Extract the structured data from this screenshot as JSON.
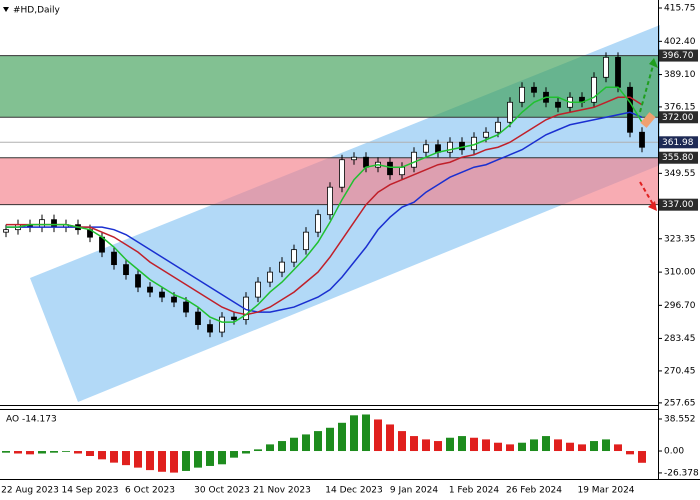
{
  "chart_data": [
    {
      "type": "candlestick",
      "title": "#HD,Daily",
      "categories": [
        null,
        null,
        "22 Aug 2023",
        null,
        null,
        null,
        null,
        "14 Sep 2023",
        null,
        null,
        null,
        null,
        "6 Oct 2023",
        null,
        null,
        null,
        null,
        null,
        "30 Oct 2023",
        null,
        null,
        null,
        null,
        "21 Nov 2023",
        null,
        null,
        null,
        null,
        null,
        "14 Dec 2023",
        null,
        null,
        null,
        null,
        "9 Jan 2024",
        null,
        null,
        null,
        null,
        "1 Feb 2024",
        null,
        null,
        null,
        null,
        "26 Feb 2024",
        null,
        null,
        null,
        null,
        null,
        "19 Mar 2024",
        null,
        null,
        null
      ],
      "open": [
        326,
        327,
        329,
        328,
        331,
        328,
        329,
        327,
        324,
        318,
        313,
        309,
        304,
        302,
        300,
        298,
        294,
        289,
        286,
        292,
        291,
        300,
        306,
        310,
        314,
        319,
        326,
        333,
        344,
        355,
        356,
        352,
        354,
        349,
        352,
        358,
        361,
        358,
        362,
        359,
        364,
        366,
        370,
        378,
        384,
        382,
        378,
        376,
        380,
        378,
        388,
        396,
        384,
        366
      ],
      "high": [
        329,
        331,
        331,
        333,
        333,
        331,
        331,
        329,
        326,
        320,
        315,
        311,
        306,
        304,
        302,
        300,
        296,
        291,
        294,
        294,
        302,
        308,
        312,
        316,
        321,
        328,
        335,
        346,
        357,
        358,
        358,
        356,
        356,
        354,
        360,
        363,
        363,
        364,
        364,
        366,
        368,
        372,
        380,
        386,
        386,
        384,
        380,
        382,
        382,
        390,
        398,
        398,
        386,
        368
      ],
      "low": [
        324,
        325,
        326,
        326,
        326,
        326,
        325,
        322,
        316,
        311,
        307,
        302,
        300,
        298,
        296,
        292,
        287,
        284,
        284,
        289,
        289,
        298,
        304,
        308,
        312,
        317,
        324,
        331,
        342,
        353,
        350,
        350,
        347,
        347,
        350,
        356,
        356,
        356,
        357,
        357,
        362,
        364,
        368,
        376,
        380,
        376,
        374,
        374,
        376,
        376,
        386,
        382,
        364,
        358
      ],
      "close": [
        327,
        329,
        328,
        331,
        328,
        329,
        327,
        324,
        318,
        313,
        309,
        304,
        302,
        300,
        298,
        294,
        289,
        286,
        292,
        291,
        300,
        306,
        310,
        314,
        319,
        326,
        333,
        344,
        355,
        356,
        352,
        354,
        349,
        352,
        358,
        361,
        358,
        362,
        359,
        364,
        366,
        370,
        378,
        384,
        382,
        378,
        376,
        380,
        378,
        388,
        396,
        384,
        366,
        360
      ],
      "up_color": "#ffffff",
      "down_color": "#000000",
      "ylim": [
        256.8,
        418.95
      ],
      "yticks": [
        415.75,
        {
          "value": 402.4,
          "label": "402.40"
        },
        {
          "value": 389.1,
          "label": "389.10"
        },
        376.15,
        349.55,
        323.35,
        {
          "value": 310,
          "label": "310.00"
        },
        {
          "value": 296.7,
          "label": "296.70"
        },
        283.45,
        270.45,
        257.65
      ],
      "series": [
        {
          "color": "#1a2fd0",
          "values": [
            328,
            328,
            328,
            328,
            328,
            328,
            328,
            328,
            328,
            327,
            325,
            322,
            319,
            316,
            313,
            310,
            307,
            304,
            301,
            298,
            295,
            294,
            294,
            295,
            296,
            298,
            300,
            303,
            308,
            314,
            320,
            327,
            332,
            336,
            338,
            342,
            345,
            348,
            350,
            352,
            353,
            355,
            357,
            359,
            362,
            365,
            367,
            369,
            370,
            371,
            372,
            373,
            374,
            372
          ]
        },
        {
          "color": "#c0202a",
          "values": [
            329,
            329,
            329,
            329,
            329,
            329,
            328,
            328,
            326,
            324,
            321,
            318,
            314,
            311,
            308,
            305,
            302,
            299,
            296,
            294,
            293,
            294,
            296,
            299,
            302,
            306,
            310,
            316,
            323,
            330,
            337,
            342,
            345,
            347,
            349,
            351,
            353,
            354,
            356,
            357,
            359,
            360,
            362,
            365,
            368,
            371,
            373,
            374,
            375,
            376,
            378,
            380,
            380,
            377
          ]
        },
        {
          "color": "#20c030",
          "values": [
            328,
            328,
            329,
            329,
            329,
            329,
            328,
            327,
            324,
            320,
            315,
            311,
            307,
            304,
            301,
            299,
            296,
            292,
            290,
            290,
            293,
            297,
            302,
            306,
            311,
            316,
            322,
            330,
            339,
            347,
            352,
            353,
            352,
            352,
            354,
            356,
            358,
            359,
            360,
            361,
            363,
            365,
            369,
            374,
            378,
            380,
            380,
            378,
            378,
            380,
            384,
            384,
            378,
            370
          ]
        }
      ],
      "levels": [
        {
          "value": 396.7,
          "label": "396.70"
        },
        {
          "value": 372,
          "label": "372.00"
        },
        361.98,
        {
          "value": 355.8,
          "label": "355.80"
        },
        {
          "value": 337,
          "label": "337.00"
        }
      ],
      "zones": [
        {
          "from": 372,
          "to": 396.7,
          "color": "#3f9f58"
        },
        {
          "from": 337,
          "to": 355.8,
          "color": "#f57f8a"
        }
      ]
    },
    {
      "type": "bar",
      "title": "AO -14.173",
      "values": [
        -2,
        -3,
        -4,
        -3,
        -2,
        -1,
        -3,
        -6,
        -10,
        -14,
        -17,
        -20,
        -23,
        -25,
        -26,
        -24,
        -20,
        -18,
        -16,
        -8,
        -3,
        2,
        8,
        12,
        16,
        20,
        24,
        28,
        34,
        43,
        44,
        38,
        32,
        24,
        18,
        14,
        12,
        16,
        18,
        16,
        14,
        10,
        8,
        10,
        14,
        18,
        14,
        10,
        8,
        12,
        14,
        8,
        -4,
        -14.173
      ],
      "up_color": "#1e8c1e",
      "down_color": "#e0201e",
      "ylim": [
        -32.5,
        47
      ],
      "yticks": [
        38.552,
        {
          "value": 0,
          "label": "0.00"
        },
        -26.378
      ]
    }
  ]
}
